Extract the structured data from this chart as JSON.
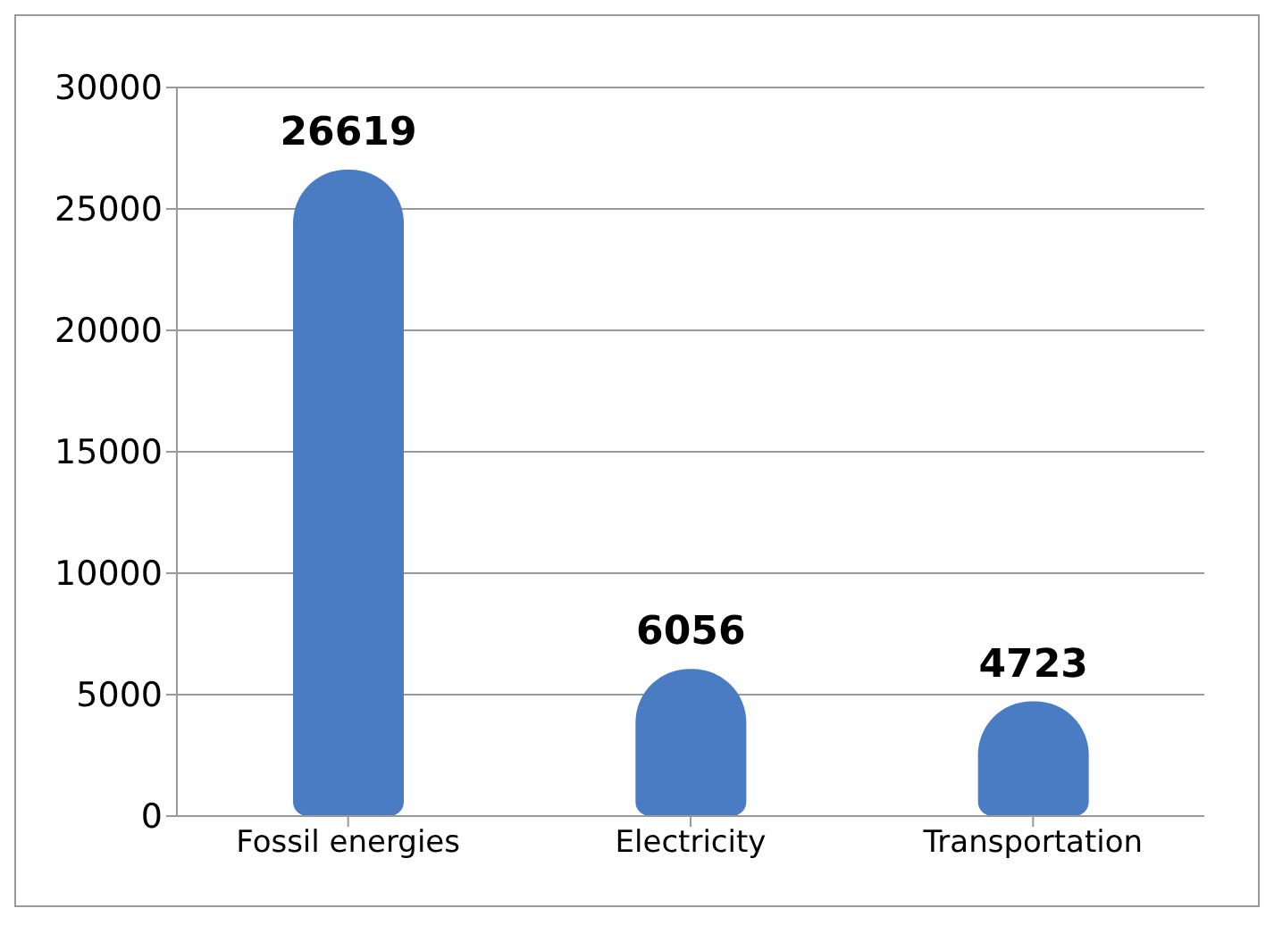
{
  "chart_data": {
    "type": "bar",
    "categories": [
      "Fossil energies",
      "Electricity",
      "Transportation"
    ],
    "values": [
      26619,
      6056,
      4723
    ],
    "color": "#4a7cc4",
    "ylim": [
      0,
      30000
    ],
    "yticks": [
      0,
      5000,
      10000,
      15000,
      20000,
      25000,
      30000
    ],
    "grid": "y",
    "data_labels": true
  }
}
